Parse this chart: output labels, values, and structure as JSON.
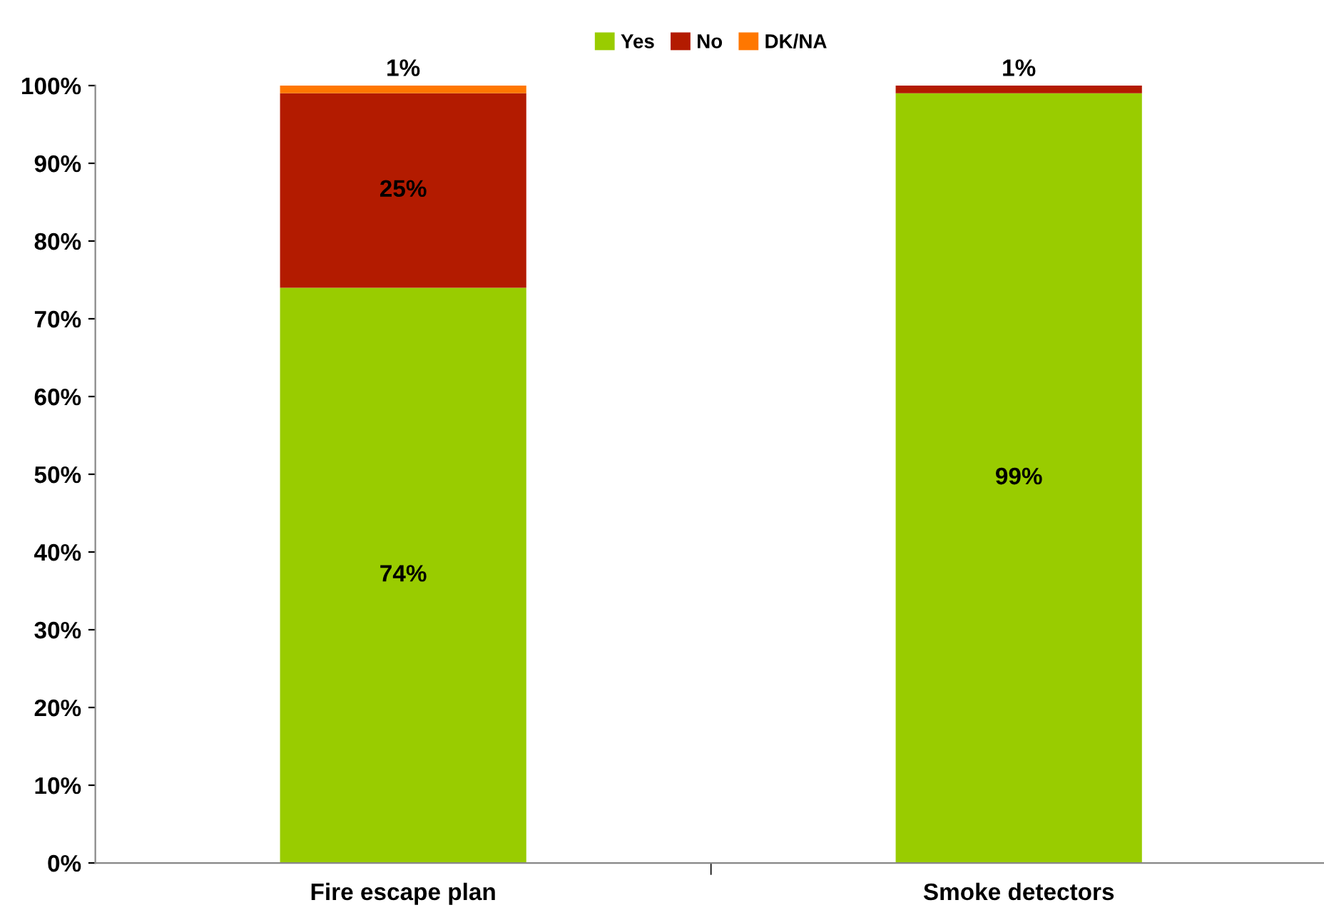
{
  "chart_data": {
    "type": "bar",
    "stacked": true,
    "categories": [
      "Fire escape plan",
      "Smoke detectors"
    ],
    "series": [
      {
        "name": "Yes",
        "color": "#99cc00",
        "values": [
          74,
          99
        ],
        "value_labels": [
          "74%",
          "99%"
        ]
      },
      {
        "name": "No",
        "color": "#b31b00",
        "values": [
          25,
          1
        ],
        "value_labels": [
          "25%",
          "1%"
        ]
      },
      {
        "name": "DK/NA",
        "color": "#ff7700",
        "values": [
          1,
          0
        ],
        "value_labels": [
          "1%",
          null
        ]
      }
    ],
    "ylim": [
      0,
      100
    ],
    "yticks": [
      {
        "value": 0,
        "label": "0%"
      },
      {
        "value": 10,
        "label": "10%"
      },
      {
        "value": 20,
        "label": "20%"
      },
      {
        "value": 30,
        "label": "30%"
      },
      {
        "value": 40,
        "label": "40%"
      },
      {
        "value": 50,
        "label": "50%"
      },
      {
        "value": 60,
        "label": "60%"
      },
      {
        "value": 70,
        "label": "70%"
      },
      {
        "value": 80,
        "label": "80%"
      },
      {
        "value": 90,
        "label": "90%"
      },
      {
        "value": 100,
        "label": "100%"
      }
    ],
    "grid": false,
    "legend": "top"
  }
}
